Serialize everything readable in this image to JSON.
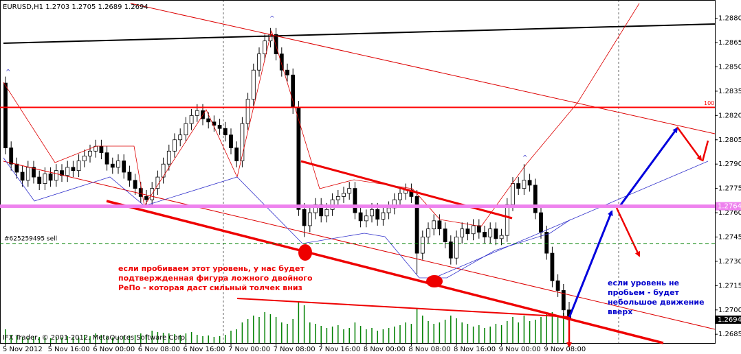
{
  "chart_data": {
    "type": "candlestick",
    "title": "EURUSD,H1  1.2703 1.2705 1.2689 1.2694",
    "footer": "IFX Trader, © 2001-2012, MetaQuotes Software Corp.",
    "ylim": [
      1.268,
      1.289
    ],
    "yticks": [
      {
        "value": 1.288,
        "label": "1.2880"
      },
      1.2865,
      {
        "value": 1.285,
        "label": "1.2850"
      },
      1.2835,
      {
        "value": 1.282,
        "label": "1.2820"
      },
      1.2805,
      {
        "value": 1.279,
        "label": "1.2790"
      },
      1.2775,
      {
        "value": 1.276,
        "label": "1.2760"
      },
      1.2745,
      {
        "value": 1.273,
        "label": "1.2730"
      },
      1.2715,
      {
        "value": 1.27,
        "label": "1.2700"
      },
      1.2685
    ],
    "categories": [
      "5 Nov 2012",
      null,
      null,
      null,
      null,
      null,
      null,
      null,
      "5 Nov 16:00",
      null,
      null,
      null,
      null,
      null,
      null,
      null,
      "6 Nov 00:00",
      null,
      null,
      null,
      null,
      null,
      null,
      null,
      "6 Nov 08:00",
      null,
      null,
      null,
      null,
      null,
      null,
      null,
      "6 Nov 16:00",
      null,
      null,
      null,
      null,
      null,
      null,
      null,
      "7 Nov 00:00",
      null,
      null,
      null,
      null,
      null,
      null,
      null,
      "7 Nov 08:00",
      null,
      null,
      null,
      null,
      null,
      null,
      null,
      "7 Nov 16:00",
      null,
      null,
      null,
      null,
      null,
      null,
      null,
      "8 Nov 00:00",
      null,
      null,
      null,
      null,
      null,
      null,
      null,
      "8 Nov 08:00",
      null,
      null,
      null,
      null,
      null,
      null,
      null,
      "8 Nov 16:00",
      null,
      null,
      null,
      null,
      null,
      null,
      null,
      "9 Nov 00:00",
      null,
      null,
      null,
      null,
      null,
      null,
      null,
      "9 Nov 08:00",
      null,
      null,
      null,
      null
    ],
    "ohlc": [
      [
        1.284,
        1.2844,
        1.2796,
        1.28
      ],
      [
        1.28,
        1.2804,
        1.2786,
        1.279
      ],
      [
        1.279,
        1.2794,
        1.2781,
        1.2785
      ],
      [
        1.2785,
        1.2789,
        1.2776,
        1.278
      ],
      [
        1.278,
        1.2792,
        1.2776,
        1.2788
      ],
      [
        1.2788,
        1.2792,
        1.2778,
        1.2782
      ],
      [
        1.2782,
        1.2786,
        1.2774,
        1.2778
      ],
      [
        1.2778,
        1.2788,
        1.2774,
        1.2784
      ],
      [
        1.2784,
        1.2788,
        1.2776,
        1.278
      ],
      [
        1.278,
        1.279,
        1.2776,
        1.2786
      ],
      [
        1.2786,
        1.279,
        1.2779,
        1.2783
      ],
      [
        1.2783,
        1.2792,
        1.2779,
        1.2788
      ],
      [
        1.2788,
        1.2792,
        1.2782,
        1.2786
      ],
      [
        1.2786,
        1.2796,
        1.2782,
        1.2792
      ],
      [
        1.2792,
        1.2799,
        1.2788,
        1.2795
      ],
      [
        1.2795,
        1.2802,
        1.2791,
        1.2798
      ],
      [
        1.2798,
        1.2805,
        1.2794,
        1.2801
      ],
      [
        1.2801,
        1.2805,
        1.2793,
        1.2797
      ],
      [
        1.2797,
        1.2801,
        1.2786,
        1.279
      ],
      [
        1.279,
        1.2794,
        1.2784,
        1.2788
      ],
      [
        1.2788,
        1.2796,
        1.2784,
        1.2792
      ],
      [
        1.2792,
        1.2796,
        1.2781,
        1.2785
      ],
      [
        1.2785,
        1.2789,
        1.2776,
        1.278
      ],
      [
        1.278,
        1.2784,
        1.2771,
        1.2775
      ],
      [
        1.2775,
        1.2779,
        1.2766,
        1.277
      ],
      [
        1.277,
        1.2774,
        1.2764,
        1.2768
      ],
      [
        1.2768,
        1.2779,
        1.2764,
        1.2775
      ],
      [
        1.2775,
        1.2786,
        1.2771,
        1.2782
      ],
      [
        1.2782,
        1.2794,
        1.2778,
        1.279
      ],
      [
        1.279,
        1.2802,
        1.2786,
        1.2798
      ],
      [
        1.2798,
        1.2809,
        1.2794,
        1.2805
      ],
      [
        1.2805,
        1.2812,
        1.2801,
        1.2808
      ],
      [
        1.2808,
        1.2819,
        1.2804,
        1.2815
      ],
      [
        1.2815,
        1.2824,
        1.2811,
        1.282
      ],
      [
        1.282,
        1.2827,
        1.2816,
        1.2823
      ],
      [
        1.2823,
        1.2827,
        1.2814,
        1.2818
      ],
      [
        1.2818,
        1.2822,
        1.2812,
        1.2816
      ],
      [
        1.2816,
        1.282,
        1.281,
        1.2814
      ],
      [
        1.2814,
        1.2818,
        1.2808,
        1.2812
      ],
      [
        1.2812,
        1.2816,
        1.2804,
        1.2808
      ],
      [
        1.2808,
        1.2812,
        1.2796,
        1.28
      ],
      [
        1.28,
        1.2804,
        1.2788,
        1.2792
      ],
      [
        1.2792,
        1.2819,
        1.2788,
        1.2815
      ],
      [
        1.2815,
        1.2834,
        1.2811,
        1.283
      ],
      [
        1.283,
        1.2852,
        1.2826,
        1.2848
      ],
      [
        1.2848,
        1.2862,
        1.2844,
        1.2858
      ],
      [
        1.2858,
        1.287,
        1.2854,
        1.2866
      ],
      [
        1.2866,
        1.2874,
        1.2862,
        1.287
      ],
      [
        1.287,
        1.2874,
        1.2854,
        1.2858
      ],
      [
        1.2858,
        1.2862,
        1.2844,
        1.2848
      ],
      [
        1.2848,
        1.2852,
        1.2841,
        1.2845
      ],
      [
        1.2845,
        1.2849,
        1.2821,
        1.2825
      ],
      [
        1.2825,
        1.2829,
        1.2758,
        1.2762
      ],
      [
        1.2762,
        1.2766,
        1.2745,
        1.2752
      ],
      [
        1.2752,
        1.2764,
        1.2748,
        1.276
      ],
      [
        1.276,
        1.2769,
        1.2756,
        1.2765
      ],
      [
        1.2765,
        1.2769,
        1.2754,
        1.2758
      ],
      [
        1.2758,
        1.2766,
        1.2754,
        1.2762
      ],
      [
        1.2762,
        1.2772,
        1.2758,
        1.2768
      ],
      [
        1.2768,
        1.2774,
        1.2764,
        1.277
      ],
      [
        1.277,
        1.2776,
        1.2766,
        1.2772
      ],
      [
        1.2772,
        1.2779,
        1.2768,
        1.2775
      ],
      [
        1.2775,
        1.2779,
        1.2756,
        1.276
      ],
      [
        1.276,
        1.2764,
        1.2751,
        1.2755
      ],
      [
        1.2755,
        1.2762,
        1.2751,
        1.2758
      ],
      [
        1.2758,
        1.2766,
        1.2754,
        1.2762
      ],
      [
        1.2762,
        1.2766,
        1.2752,
        1.2756
      ],
      [
        1.2756,
        1.2764,
        1.2752,
        1.276
      ],
      [
        1.276,
        1.2767,
        1.2756,
        1.2763
      ],
      [
        1.2763,
        1.2772,
        1.2759,
        1.2768
      ],
      [
        1.2768,
        1.2776,
        1.2764,
        1.2772
      ],
      [
        1.2772,
        1.2778,
        1.2768,
        1.2774
      ],
      [
        1.2774,
        1.2778,
        1.2766,
        1.277
      ],
      [
        1.277,
        1.2774,
        1.2722,
        1.2735
      ],
      [
        1.2735,
        1.2749,
        1.2731,
        1.2745
      ],
      [
        1.2745,
        1.2754,
        1.2741,
        1.275
      ],
      [
        1.275,
        1.2759,
        1.2746,
        1.2755
      ],
      [
        1.2755,
        1.2759,
        1.2746,
        1.275
      ],
      [
        1.275,
        1.2754,
        1.2738,
        1.2742
      ],
      [
        1.2742,
        1.2746,
        1.2728,
        1.2732
      ],
      [
        1.2732,
        1.2749,
        1.2728,
        1.2745
      ],
      [
        1.2745,
        1.2754,
        1.2741,
        1.275
      ],
      [
        1.275,
        1.2754,
        1.2743,
        1.2747
      ],
      [
        1.2747,
        1.2756,
        1.2743,
        1.2752
      ],
      [
        1.2752,
        1.2756,
        1.2744,
        1.2748
      ],
      [
        1.2748,
        1.2752,
        1.2741,
        1.2745
      ],
      [
        1.2745,
        1.2754,
        1.2741,
        1.275
      ],
      [
        1.275,
        1.2754,
        1.274,
        1.2744
      ],
      [
        1.2744,
        1.275,
        1.274,
        1.2746
      ],
      [
        1.2746,
        1.2769,
        1.2742,
        1.2765
      ],
      [
        1.2765,
        1.2782,
        1.2761,
        1.2778
      ],
      [
        1.2778,
        1.2782,
        1.2771,
        1.2775
      ],
      [
        1.2775,
        1.279,
        1.2771,
        1.278
      ],
      [
        1.278,
        1.2784,
        1.2773,
        1.2777
      ],
      [
        1.2777,
        1.2781,
        1.2756,
        1.276
      ],
      [
        1.276,
        1.2764,
        1.2744,
        1.2748
      ],
      [
        1.2748,
        1.2752,
        1.2731,
        1.2735
      ],
      [
        1.2735,
        1.2739,
        1.2714,
        1.2718
      ],
      [
        1.2718,
        1.2722,
        1.2708,
        1.2712
      ],
      [
        1.2712,
        1.2716,
        1.2696,
        1.27
      ],
      [
        1.27,
        1.2705,
        1.2689,
        1.2694
      ]
    ],
    "volumes": [
      20,
      12,
      10,
      9,
      8,
      10,
      9,
      8,
      7,
      9,
      8,
      10,
      9,
      8,
      12,
      10,
      14,
      12,
      10,
      8,
      9,
      10,
      11,
      12,
      14,
      12,
      18,
      16,
      15,
      14,
      13,
      12,
      14,
      16,
      12,
      10,
      11,
      9,
      10,
      12,
      18,
      20,
      30,
      35,
      40,
      38,
      45,
      42,
      38,
      30,
      28,
      35,
      60,
      55,
      30,
      28,
      25,
      22,
      24,
      26,
      20,
      22,
      30,
      25,
      20,
      22,
      18,
      20,
      22,
      24,
      26,
      30,
      28,
      50,
      40,
      32,
      28,
      30,
      34,
      40,
      36,
      30,
      28,
      24,
      26,
      22,
      24,
      28,
      26,
      32,
      38,
      30,
      40,
      32,
      34,
      38,
      42,
      45,
      40,
      44,
      36
    ],
    "volume_color": "#008000",
    "bull_color": "#ffffff",
    "bear_color": "#000000",
    "levels": [
      {
        "value": 1.2825,
        "label": "100",
        "color": "#ff0000"
      },
      {
        "value": 1.2764,
        "label": "1.2764",
        "color": "#ee82ee"
      },
      {
        "value": 1.2741,
        "label": "#625259495 sell",
        "color": "#008000"
      }
    ],
    "last_price": {
      "value": 1.2694,
      "label": "1.2694"
    },
    "annotations": [
      {
        "lines": [
          "если пробиваем этот уровень, у нас будет",
          "подтвержденная фигура ложного двойного",
          "РеПо - которая даст сильный толчек вниз"
        ],
        "color": "#ee0000"
      },
      {
        "lines": [
          "если уровень не",
          "пробьем - будет",
          "небольшое движение",
          "вверх"
        ],
        "color": "#0000cc"
      }
    ]
  }
}
